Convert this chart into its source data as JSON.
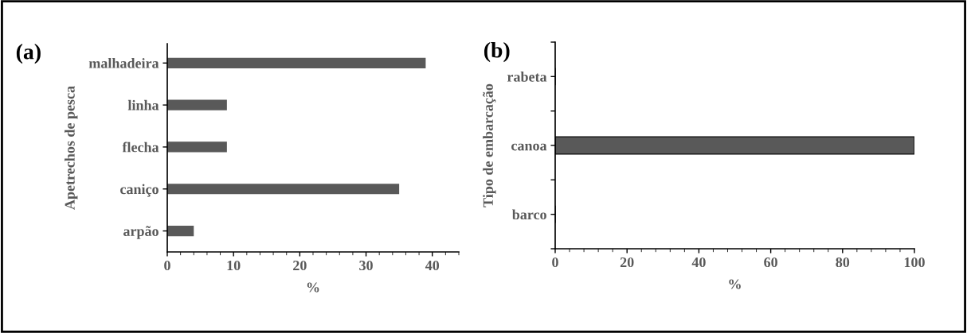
{
  "chart_data": [
    {
      "type": "bar",
      "orientation": "horizontal",
      "title": "(a)",
      "ylabel": "Apetrechos de pesca",
      "xlabel": "%",
      "categories": [
        "malhadeira",
        "linha",
        "flecha",
        "caniço",
        "arpão"
      ],
      "values": [
        39,
        9,
        9,
        35,
        4
      ],
      "color": "#595959",
      "xlim": [
        0,
        44
      ],
      "xticks": [
        0,
        10,
        20,
        30,
        40
      ],
      "grid": false,
      "legend": false
    },
    {
      "type": "bar",
      "orientation": "horizontal",
      "title": "(b)",
      "ylabel": "Tipo de embarcação",
      "xlabel": "%",
      "categories": [
        "rabeta",
        "canoa",
        "barco"
      ],
      "values": [
        0,
        100,
        0
      ],
      "color": "#595959",
      "xlim": [
        0,
        100
      ],
      "xticks": [
        0,
        20,
        40,
        60,
        80,
        100
      ],
      "grid": false,
      "legend": false
    }
  ]
}
